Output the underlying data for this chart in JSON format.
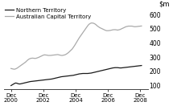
{
  "title": "",
  "ylim": [
    75,
    650
  ],
  "yticks": [
    100,
    200,
    300,
    400,
    500,
    600
  ],
  "background_color": "#ffffff",
  "nt_data": [
    100,
    105,
    110,
    115,
    118,
    116,
    113,
    111,
    112,
    114,
    116,
    118,
    120,
    122,
    124,
    126,
    128,
    129,
    130,
    131,
    132,
    133,
    134,
    135,
    136,
    137,
    138,
    139,
    140,
    141,
    142,
    143,
    144,
    145,
    146,
    148,
    150,
    152,
    154,
    156,
    158,
    160,
    162,
    163,
    164,
    165,
    166,
    167,
    168,
    169,
    170,
    171,
    172,
    174,
    176,
    178,
    180,
    182,
    183,
    184,
    185,
    185,
    185,
    185,
    185,
    186,
    187,
    188,
    190,
    192,
    194,
    196,
    198,
    200,
    202,
    204,
    206,
    208,
    210,
    212,
    214,
    216,
    218,
    220,
    222,
    224,
    225,
    226,
    226,
    226,
    225,
    224,
    224,
    225,
    226,
    227,
    228,
    229,
    230,
    231,
    232,
    233,
    234,
    235,
    236,
    237,
    238,
    239,
    240,
    241
  ],
  "act_data": [
    220,
    218,
    216,
    215,
    218,
    222,
    228,
    234,
    240,
    246,
    252,
    258,
    264,
    272,
    280,
    286,
    290,
    292,
    293,
    292,
    291,
    292,
    295,
    298,
    302,
    306,
    310,
    314,
    316,
    315,
    314,
    312,
    312,
    312,
    313,
    314,
    315,
    316,
    317,
    318,
    316,
    314,
    312,
    312,
    314,
    316,
    320,
    326,
    332,
    340,
    348,
    356,
    368,
    380,
    394,
    408,
    422,
    436,
    448,
    460,
    472,
    484,
    496,
    508,
    520,
    530,
    536,
    540,
    540,
    538,
    534,
    528,
    520,
    514,
    508,
    504,
    500,
    496,
    492,
    488,
    486,
    486,
    487,
    488,
    490,
    492,
    493,
    493,
    492,
    490,
    492,
    494,
    498,
    502,
    506,
    510,
    514,
    516,
    518,
    518,
    518,
    518,
    516,
    514,
    514,
    515,
    516,
    517,
    518,
    519
  ],
  "line_color_nt": "#1a1a1a",
  "line_color_act": "#aaaaaa",
  "line_width": 0.9,
  "n_points": 110,
  "xtick_years": [
    2000,
    2002,
    2004,
    2006,
    2008
  ],
  "xtick_labels": [
    "Dec\n2000",
    "Dec\n2002",
    "Dec\n2004",
    "Dec\n2006",
    "Dec\n2008"
  ]
}
